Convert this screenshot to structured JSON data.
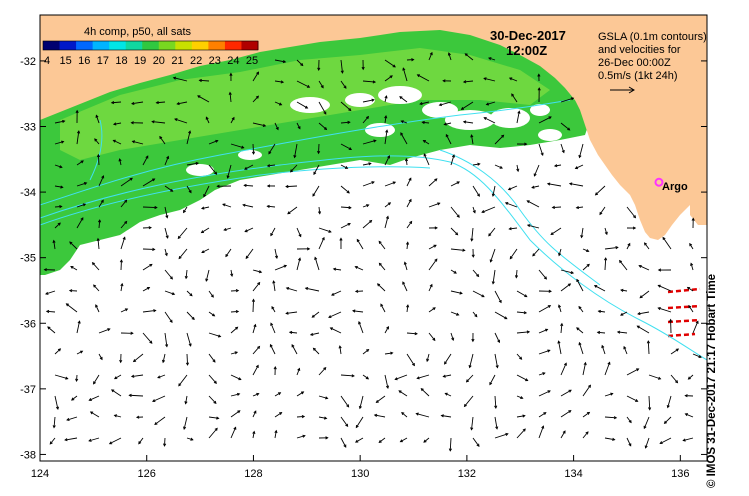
{
  "title": {
    "date": "30-Dec-2017",
    "time": "12:00Z"
  },
  "colorbar": {
    "label": "4h comp, p50, all sats",
    "tick_labels": [
      "4",
      "15",
      "16",
      "17",
      "18",
      "19",
      "20",
      "21",
      "22",
      "23",
      "24",
      "25"
    ],
    "colors": [
      "#000070",
      "#0018c8",
      "#0068ff",
      "#00b4ff",
      "#00e6e6",
      "#10d8a0",
      "#30c840",
      "#78d820",
      "#c8e000",
      "#ffd000",
      "#ff8000",
      "#ff2800",
      "#b00000"
    ]
  },
  "legend_info": {
    "line1": "GSLA (0.1m contours)",
    "line2": "and velocities for",
    "line3": "26-Dec 00:00Z",
    "line4": "0.5m/s (1kt 24h)"
  },
  "argo": {
    "label": "Argo",
    "marker_color": "#ff33ff",
    "lon": 135.6,
    "lat": -33.85
  },
  "axes": {
    "x_ticks": [
      "124",
      "126",
      "128",
      "130",
      "132",
      "134",
      "136"
    ],
    "y_ticks": [
      "-32",
      "-33",
      "-34",
      "-35",
      "-36",
      "-37",
      "-38"
    ],
    "lon_range": [
      124,
      136.5
    ],
    "lat_range": [
      -38.1,
      -31.3
    ]
  },
  "credit": "© IMOS 31-Dec-2017 21:17 Hobart Time",
  "colors": {
    "land": "#fcc896",
    "sst_green": "#3cc83c",
    "contour": "#40e0f0",
    "velocity": "#000000",
    "warm_arrows": "#e00000"
  }
}
